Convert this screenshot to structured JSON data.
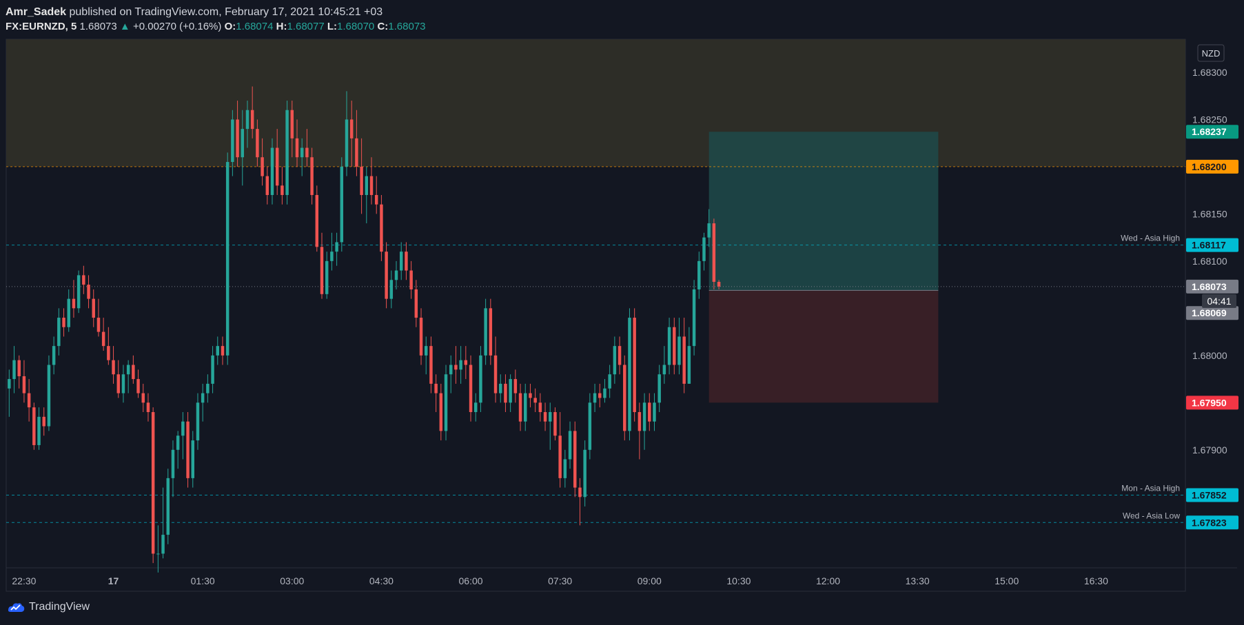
{
  "header": {
    "author": "Amr_Sadek",
    "published": "published on TradingView.com, February 17, 2021 10:45:21 +03",
    "symbol": "FX:EURNZD, 5",
    "last": "1.68073",
    "arrow": "▲",
    "change": "+0.00270 (+0.16%)",
    "o_label": "O:",
    "o_val": "1.68074",
    "h_label": "H:",
    "h_val": "1.68077",
    "l_label": "L:",
    "l_val": "1.68070",
    "c_label": "C:",
    "c_val": "1.68073"
  },
  "footer": {
    "brand": "TradingView"
  },
  "colors": {
    "bg": "#131722",
    "up": "#26a69a",
    "down": "#ef5350",
    "zone": "#2e2e28",
    "target": "#1e4a4a",
    "stop": "#3d2027",
    "cyan": "#00bcd4",
    "orange": "#ff9800",
    "red_label": "#f23645",
    "green_label": "#089981",
    "grey_label": "#787b86"
  },
  "chart_data": {
    "type": "candlestick",
    "currency": "NZD",
    "ylim": [
      1.67775,
      1.68335
    ],
    "y_ticks": [
      "1.67900",
      "1.68000",
      "1.68100",
      "1.68150",
      "1.68250",
      "1.68300"
    ],
    "x_ticks": [
      "22:30",
      "17",
      "01:30",
      "03:00",
      "04:30",
      "06:00",
      "07:30",
      "09:00",
      "10:30",
      "12:00",
      "13:30",
      "15:00",
      "16:30"
    ],
    "x_tick_hours": [
      -1.5,
      0,
      1.5,
      3,
      4.5,
      6,
      7.5,
      9,
      10.5,
      12,
      13.5,
      15,
      16.5
    ],
    "x_range_hours": [
      -1.8,
      18.0
    ],
    "supply_zone": {
      "from": 1.682,
      "to": 1.68335
    },
    "position": {
      "entry": 1.68069,
      "target": 1.68237,
      "stop": 1.6795,
      "start_hour": 10.0,
      "end_hour": 13.85
    },
    "levels": [
      {
        "price": 1.68117,
        "label": "1.68117",
        "name": "Wed - Asia High",
        "style": "cyan"
      },
      {
        "price": 1.67852,
        "label": "1.67852",
        "name": "Mon - Asia High",
        "style": "cyan"
      },
      {
        "price": 1.67823,
        "label": "1.67823",
        "name": "Wed - Asia Low",
        "style": "cyan"
      },
      {
        "price": 1.682,
        "label": "1.68200",
        "name": "",
        "style": "orange"
      }
    ],
    "price_labels": [
      {
        "price": 1.68237,
        "label": "1.68237",
        "style": "green"
      },
      {
        "price": 1.68073,
        "label": "1.68073",
        "style": "grey"
      },
      {
        "price": 1.68069,
        "label": "1.68069",
        "style": "grey"
      },
      {
        "price": 1.6795,
        "label": "1.67950",
        "style": "red"
      }
    ],
    "countdown": "04:41",
    "candles_start_hour": -1.75,
    "candle_interval_minutes": 5,
    "candles": [
      [
        1.67965,
        1.67985,
        1.67935,
        1.67975
      ],
      [
        1.67975,
        1.6801,
        1.6796,
        1.67995
      ],
      [
        1.67995,
        1.68,
        1.67965,
        1.67978
      ],
      [
        1.67978,
        1.67995,
        1.6795,
        1.6796
      ],
      [
        1.6796,
        1.67975,
        1.6793,
        1.67945
      ],
      [
        1.67945,
        1.6795,
        1.679,
        1.67905
      ],
      [
        1.67905,
        1.67945,
        1.679,
        1.67935
      ],
      [
        1.67935,
        1.67945,
        1.67915,
        1.67925
      ],
      [
        1.67925,
        1.68,
        1.6792,
        1.6799
      ],
      [
        1.6799,
        1.6802,
        1.6798,
        1.6801
      ],
      [
        1.6801,
        1.6805,
        1.68,
        1.6804
      ],
      [
        1.6804,
        1.6805,
        1.6802,
        1.6803
      ],
      [
        1.6803,
        1.6807,
        1.68025,
        1.6806
      ],
      [
        1.6806,
        1.6808,
        1.6804,
        1.6805
      ],
      [
        1.6805,
        1.6809,
        1.68045,
        1.68085
      ],
      [
        1.68085,
        1.68095,
        1.68065,
        1.68075
      ],
      [
        1.68075,
        1.68085,
        1.6805,
        1.6806
      ],
      [
        1.6806,
        1.6807,
        1.6803,
        1.6804
      ],
      [
        1.6804,
        1.6806,
        1.6802,
        1.68025
      ],
      [
        1.68025,
        1.6804,
        1.68005,
        1.6801
      ],
      [
        1.6801,
        1.6803,
        1.6799,
        1.67995
      ],
      [
        1.67995,
        1.6801,
        1.6797,
        1.6798
      ],
      [
        1.6798,
        1.67995,
        1.67955,
        1.6796
      ],
      [
        1.6796,
        1.6799,
        1.6795,
        1.6798
      ],
      [
        1.6798,
        1.67995,
        1.6796,
        1.6799
      ],
      [
        1.6799,
        1.68,
        1.6797,
        1.67975
      ],
      [
        1.67975,
        1.67985,
        1.67955,
        1.6796
      ],
      [
        1.6796,
        1.6797,
        1.6794,
        1.6795
      ],
      [
        1.6795,
        1.6796,
        1.6793,
        1.6794
      ],
      [
        1.6794,
        1.67945,
        1.6778,
        1.6779
      ],
      [
        1.6779,
        1.6782,
        1.6777,
        1.6779
      ],
      [
        1.6779,
        1.6786,
        1.67785,
        1.6781
      ],
      [
        1.6781,
        1.6788,
        1.678,
        1.6787
      ],
      [
        1.6787,
        1.6791,
        1.6785,
        1.679
      ],
      [
        1.679,
        1.6792,
        1.6788,
        1.67915
      ],
      [
        1.67915,
        1.6794,
        1.6789,
        1.6793
      ],
      [
        1.6793,
        1.6794,
        1.6786,
        1.6787
      ],
      [
        1.6787,
        1.6792,
        1.6786,
        1.6791
      ],
      [
        1.6791,
        1.6796,
        1.679,
        1.6795
      ],
      [
        1.6795,
        1.6797,
        1.6793,
        1.6796
      ],
      [
        1.6796,
        1.6798,
        1.6795,
        1.6797
      ],
      [
        1.6797,
        1.6801,
        1.6796,
        1.68
      ],
      [
        1.68,
        1.6802,
        1.6799,
        1.6801
      ],
      [
        1.6801,
        1.6802,
        1.6799,
        1.68
      ],
      [
        1.68,
        1.68215,
        1.6799,
        1.68205
      ],
      [
        1.68205,
        1.6826,
        1.6819,
        1.6825
      ],
      [
        1.6825,
        1.6827,
        1.682,
        1.6821
      ],
      [
        1.6821,
        1.6826,
        1.6818,
        1.6824
      ],
      [
        1.6824,
        1.6827,
        1.6822,
        1.6826
      ],
      [
        1.6826,
        1.68285,
        1.6823,
        1.6824
      ],
      [
        1.6824,
        1.6825,
        1.682,
        1.6821
      ],
      [
        1.6821,
        1.6823,
        1.6818,
        1.6819
      ],
      [
        1.6819,
        1.682,
        1.6816,
        1.6817
      ],
      [
        1.6817,
        1.6823,
        1.6816,
        1.6822
      ],
      [
        1.6822,
        1.6824,
        1.6817,
        1.6818
      ],
      [
        1.6818,
        1.682,
        1.6816,
        1.6817
      ],
      [
        1.6817,
        1.6827,
        1.6816,
        1.6826
      ],
      [
        1.6826,
        1.6827,
        1.6821,
        1.6823
      ],
      [
        1.6823,
        1.6825,
        1.682,
        1.6821
      ],
      [
        1.6821,
        1.6823,
        1.6819,
        1.6822
      ],
      [
        1.6822,
        1.6824,
        1.682,
        1.6821
      ],
      [
        1.6821,
        1.6822,
        1.6816,
        1.6817
      ],
      [
        1.6817,
        1.6818,
        1.6811,
        1.68115
      ],
      [
        1.68115,
        1.6813,
        1.6806,
        1.68065
      ],
      [
        1.68065,
        1.6811,
        1.6806,
        1.681
      ],
      [
        1.681,
        1.6813,
        1.6809,
        1.6811
      ],
      [
        1.6811,
        1.6813,
        1.68095,
        1.6812
      ],
      [
        1.6812,
        1.6821,
        1.6811,
        1.682
      ],
      [
        1.682,
        1.6828,
        1.6819,
        1.6825
      ],
      [
        1.6825,
        1.6827,
        1.682,
        1.6823
      ],
      [
        1.6823,
        1.6826,
        1.6819,
        1.682
      ],
      [
        1.682,
        1.6823,
        1.6815,
        1.6817
      ],
      [
        1.6817,
        1.682,
        1.6814,
        1.6819
      ],
      [
        1.6819,
        1.6821,
        1.6816,
        1.6817
      ],
      [
        1.6817,
        1.6819,
        1.6815,
        1.6816
      ],
      [
        1.6816,
        1.6817,
        1.681,
        1.6811
      ],
      [
        1.6811,
        1.6812,
        1.6805,
        1.6806
      ],
      [
        1.6806,
        1.6809,
        1.6805,
        1.6808
      ],
      [
        1.6808,
        1.681,
        1.6807,
        1.6809
      ],
      [
        1.6809,
        1.6812,
        1.6808,
        1.6811
      ],
      [
        1.6811,
        1.6812,
        1.6808,
        1.6809
      ],
      [
        1.6809,
        1.681,
        1.6806,
        1.6807
      ],
      [
        1.6807,
        1.6808,
        1.6803,
        1.6804
      ],
      [
        1.6804,
        1.6805,
        1.6799,
        1.68
      ],
      [
        1.68,
        1.6802,
        1.6798,
        1.6801
      ],
      [
        1.6801,
        1.6802,
        1.6796,
        1.6797
      ],
      [
        1.6797,
        1.6798,
        1.6794,
        1.6796
      ],
      [
        1.6796,
        1.6797,
        1.6791,
        1.6792
      ],
      [
        1.6792,
        1.6799,
        1.6791,
        1.6798
      ],
      [
        1.6798,
        1.68,
        1.6796,
        1.6799
      ],
      [
        1.6799,
        1.6801,
        1.6797,
        1.67985
      ],
      [
        1.67985,
        1.6801,
        1.6797,
        1.67995
      ],
      [
        1.67995,
        1.6801,
        1.67975,
        1.6799
      ],
      [
        1.6799,
        1.68,
        1.6793,
        1.6794
      ],
      [
        1.6794,
        1.6796,
        1.6793,
        1.6795
      ],
      [
        1.6795,
        1.6801,
        1.6794,
        1.68
      ],
      [
        1.68,
        1.6806,
        1.6799,
        1.6805
      ],
      [
        1.6805,
        1.6806,
        1.6799,
        1.68
      ],
      [
        1.68,
        1.6802,
        1.6795,
        1.6796
      ],
      [
        1.6796,
        1.6798,
        1.6795,
        1.6797
      ],
      [
        1.6797,
        1.6798,
        1.6794,
        1.6795
      ],
      [
        1.6795,
        1.6798,
        1.6794,
        1.67975
      ],
      [
        1.67975,
        1.67985,
        1.6795,
        1.6796
      ],
      [
        1.6796,
        1.6797,
        1.6792,
        1.6793
      ],
      [
        1.6793,
        1.6797,
        1.6792,
        1.6796
      ],
      [
        1.6796,
        1.6797,
        1.67945,
        1.67955
      ],
      [
        1.67955,
        1.67965,
        1.6794,
        1.6795
      ],
      [
        1.6795,
        1.6796,
        1.6793,
        1.6794
      ],
      [
        1.6794,
        1.6795,
        1.6792,
        1.6793
      ],
      [
        1.6793,
        1.6795,
        1.679,
        1.6794
      ],
      [
        1.6794,
        1.67945,
        1.6791,
        1.67915
      ],
      [
        1.67915,
        1.6794,
        1.6786,
        1.6787
      ],
      [
        1.6787,
        1.679,
        1.6786,
        1.6789
      ],
      [
        1.6789,
        1.6793,
        1.6788,
        1.6792
      ],
      [
        1.6792,
        1.6793,
        1.6785,
        1.6786
      ],
      [
        1.6786,
        1.6787,
        1.6782,
        1.6785
      ],
      [
        1.6785,
        1.6791,
        1.6784,
        1.679
      ],
      [
        1.679,
        1.6796,
        1.6789,
        1.6795
      ],
      [
        1.6795,
        1.6797,
        1.6794,
        1.6796
      ],
      [
        1.6796,
        1.6797,
        1.67945,
        1.67955
      ],
      [
        1.67955,
        1.67975,
        1.6795,
        1.67965
      ],
      [
        1.67965,
        1.6799,
        1.67955,
        1.6798
      ],
      [
        1.6798,
        1.6802,
        1.6797,
        1.6801
      ],
      [
        1.6801,
        1.6802,
        1.6798,
        1.6799
      ],
      [
        1.6799,
        1.68,
        1.6791,
        1.6792
      ],
      [
        1.6792,
        1.6805,
        1.6791,
        1.6804
      ],
      [
        1.6804,
        1.6805,
        1.6793,
        1.6794
      ],
      [
        1.6794,
        1.6795,
        1.6789,
        1.6792
      ],
      [
        1.6792,
        1.6796,
        1.679,
        1.6795
      ],
      [
        1.6795,
        1.6796,
        1.6792,
        1.6793
      ],
      [
        1.6793,
        1.6796,
        1.6792,
        1.6795
      ],
      [
        1.6795,
        1.6799,
        1.6794,
        1.6798
      ],
      [
        1.6798,
        1.6801,
        1.6797,
        1.6799
      ],
      [
        1.6799,
        1.6804,
        1.6798,
        1.6803
      ],
      [
        1.6803,
        1.6804,
        1.6798,
        1.6799
      ],
      [
        1.6799,
        1.6804,
        1.6798,
        1.6802
      ],
      [
        1.6802,
        1.6804,
        1.6796,
        1.6797
      ],
      [
        1.6797,
        1.6803,
        1.6797,
        1.6801
      ],
      [
        1.6801,
        1.6808,
        1.68,
        1.6807
      ],
      [
        1.6807,
        1.6811,
        1.6806,
        1.681
      ],
      [
        1.681,
        1.6813,
        1.6809,
        1.68125
      ],
      [
        1.68125,
        1.68155,
        1.68115,
        1.6814
      ],
      [
        1.6814,
        1.68145,
        1.6807,
        1.68078
      ],
      [
        1.68078,
        1.6808,
        1.6807,
        1.68073
      ]
    ]
  }
}
